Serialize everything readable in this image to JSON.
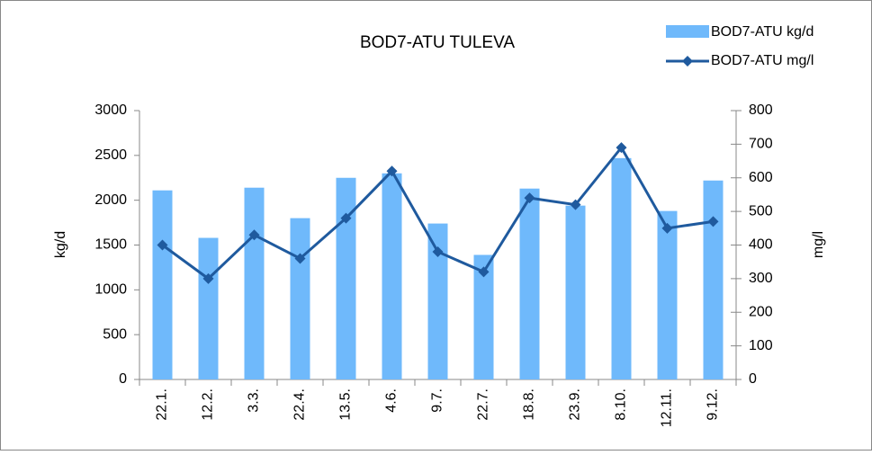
{
  "chart_data": {
    "type": "bar",
    "title": "BOD7-ATU TULEVA",
    "categories": [
      "22.1.",
      "12.2.",
      "3.3.",
      "22.4.",
      "13.5.",
      "4.6.",
      "9.7.",
      "22.7.",
      "18.8.",
      "23.9.",
      "8.10.",
      "12.11.",
      "9.12."
    ],
    "series": [
      {
        "name": "BOD7-ATU kg/d",
        "type": "bar",
        "color": "#6fb9fb",
        "values": [
          2110,
          1580,
          2140,
          1800,
          2250,
          2300,
          1740,
          1390,
          2130,
          1940,
          2470,
          1880,
          2220
        ]
      },
      {
        "name": "BOD7-ATU mg/l",
        "type": "line",
        "axis": "y2",
        "color": "#1f5a9e",
        "values": [
          400,
          300,
          430,
          360,
          480,
          620,
          380,
          320,
          540,
          520,
          690,
          450,
          470
        ]
      }
    ],
    "ylabel": "kg/d",
    "y2label": "mg/l",
    "ylim": [
      0,
      3000
    ],
    "yticks": [
      0,
      500,
      1000,
      1500,
      2000,
      2500,
      3000
    ],
    "y2lim": [
      0,
      800
    ],
    "y2ticks": [
      0,
      100,
      200,
      300,
      400,
      500,
      600,
      700,
      800
    ],
    "legend": "top-right",
    "grid": false
  }
}
